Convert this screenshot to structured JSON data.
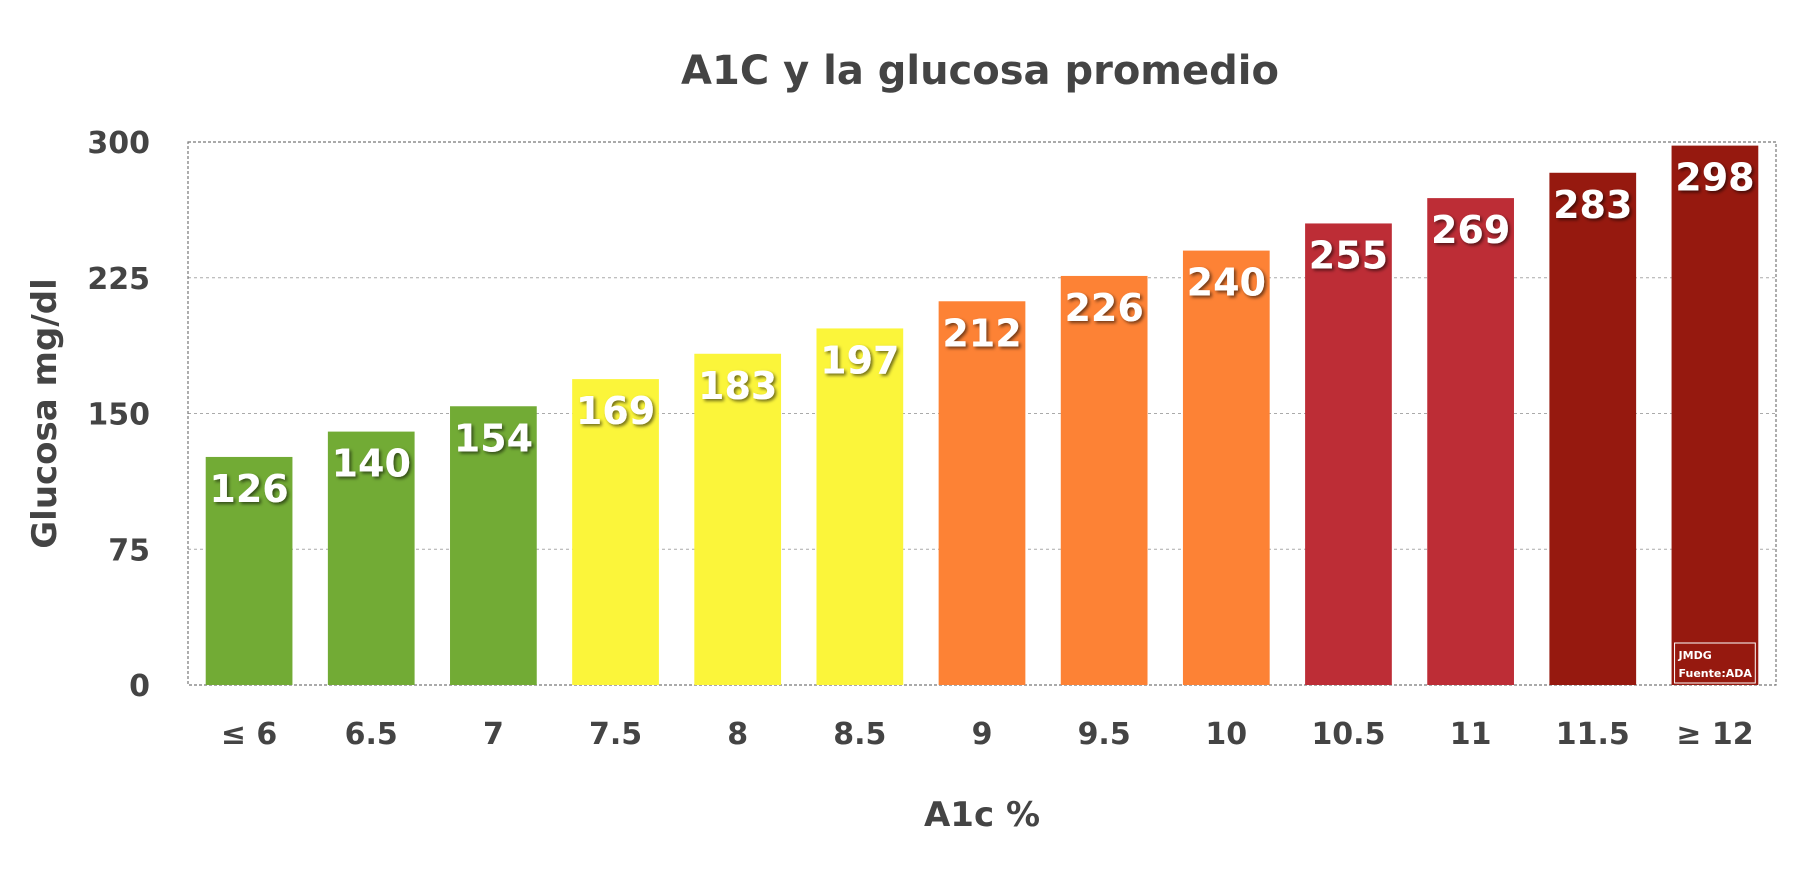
{
  "chart_data": {
    "type": "bar",
    "title": "A1C y la glucosa promedio",
    "xlabel": "A1c %",
    "ylabel": "Glucosa mg/dl",
    "categories": [
      "≤ 6",
      "6.5",
      "7",
      "7.5",
      "8",
      "8.5",
      "9",
      "9.5",
      "10",
      "10.5",
      "11",
      "11.5",
      "≥ 12"
    ],
    "values": [
      126,
      140,
      154,
      169,
      183,
      197,
      212,
      226,
      240,
      255,
      269,
      283,
      298
    ],
    "bar_colors": [
      "#72ab35",
      "#72ab35",
      "#72ab35",
      "#fbf53a",
      "#fbf53a",
      "#fbf53a",
      "#fd8235",
      "#fd8235",
      "#fd8235",
      "#bd2d36",
      "#bd2d36",
      "#96190f",
      "#96190f"
    ],
    "ylim": [
      0,
      300
    ],
    "yticks": [
      0,
      75,
      150,
      225,
      300
    ],
    "grid": true,
    "legend": "none",
    "data_labels": true
  },
  "watermark": {
    "line1": "JMDG",
    "line2": "Fuente:ADA"
  },
  "colors": {
    "text": "#444444",
    "grid": "#aaaaaa",
    "frame": "#777777"
  }
}
